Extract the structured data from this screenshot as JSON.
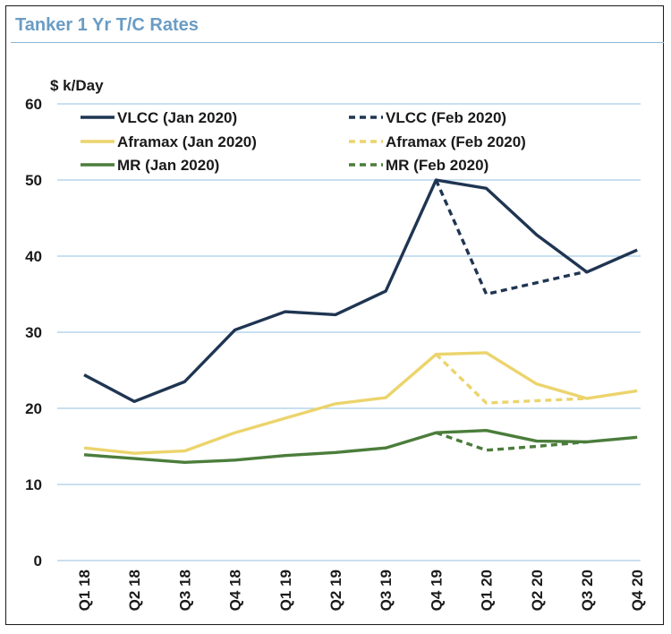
{
  "chart_data": {
    "type": "line",
    "title": "Tanker 1 Yr T/C Rates",
    "ylabel": "$ k/Day",
    "xlabel": "",
    "ylim": [
      0,
      60
    ],
    "yticks": [
      0,
      10,
      20,
      30,
      40,
      50,
      60
    ],
    "grid": "horizontal",
    "legend_position": "top",
    "categories": [
      "Q1 18",
      "Q2 18",
      "Q3 18",
      "Q4 18",
      "Q1 19",
      "Q2 19",
      "Q3 19",
      "Q4 19",
      "Q1 20",
      "Q2 20",
      "Q3 20",
      "Q4 20"
    ],
    "series": [
      {
        "name": "VLCC (Jan 2020)",
        "color": "#1f3552",
        "dashed": false,
        "values": [
          24.4,
          20.9,
          23.5,
          30.3,
          32.7,
          32.3,
          35.4,
          50.0,
          48.9,
          42.8,
          37.9,
          40.8
        ]
      },
      {
        "name": "Aframax (Jan 2020)",
        "color": "#ecd46c",
        "dashed": false,
        "values": [
          14.8,
          14.1,
          14.4,
          16.8,
          18.7,
          20.6,
          21.4,
          27.1,
          27.3,
          23.2,
          21.3,
          22.3
        ]
      },
      {
        "name": "MR (Jan 2020)",
        "color": "#4b7d3b",
        "dashed": false,
        "values": [
          13.9,
          13.4,
          12.9,
          13.2,
          13.8,
          14.2,
          14.8,
          16.8,
          17.1,
          15.7,
          15.6,
          16.2
        ]
      },
      {
        "name": "VLCC (Feb 2020)",
        "color": "#1f3552",
        "dashed": true,
        "values": [
          null,
          null,
          null,
          null,
          null,
          null,
          null,
          50.0,
          35.0,
          36.5,
          38.0,
          null
        ]
      },
      {
        "name": "Aframax (Feb 2020)",
        "color": "#ecd46c",
        "dashed": true,
        "values": [
          null,
          null,
          null,
          null,
          null,
          null,
          null,
          27.1,
          20.7,
          21.0,
          21.3,
          null
        ]
      },
      {
        "name": "MR (Feb 2020)",
        "color": "#4b7d3b",
        "dashed": true,
        "values": [
          null,
          null,
          null,
          null,
          null,
          null,
          null,
          16.8,
          14.5,
          15.0,
          15.6,
          null
        ]
      }
    ]
  }
}
